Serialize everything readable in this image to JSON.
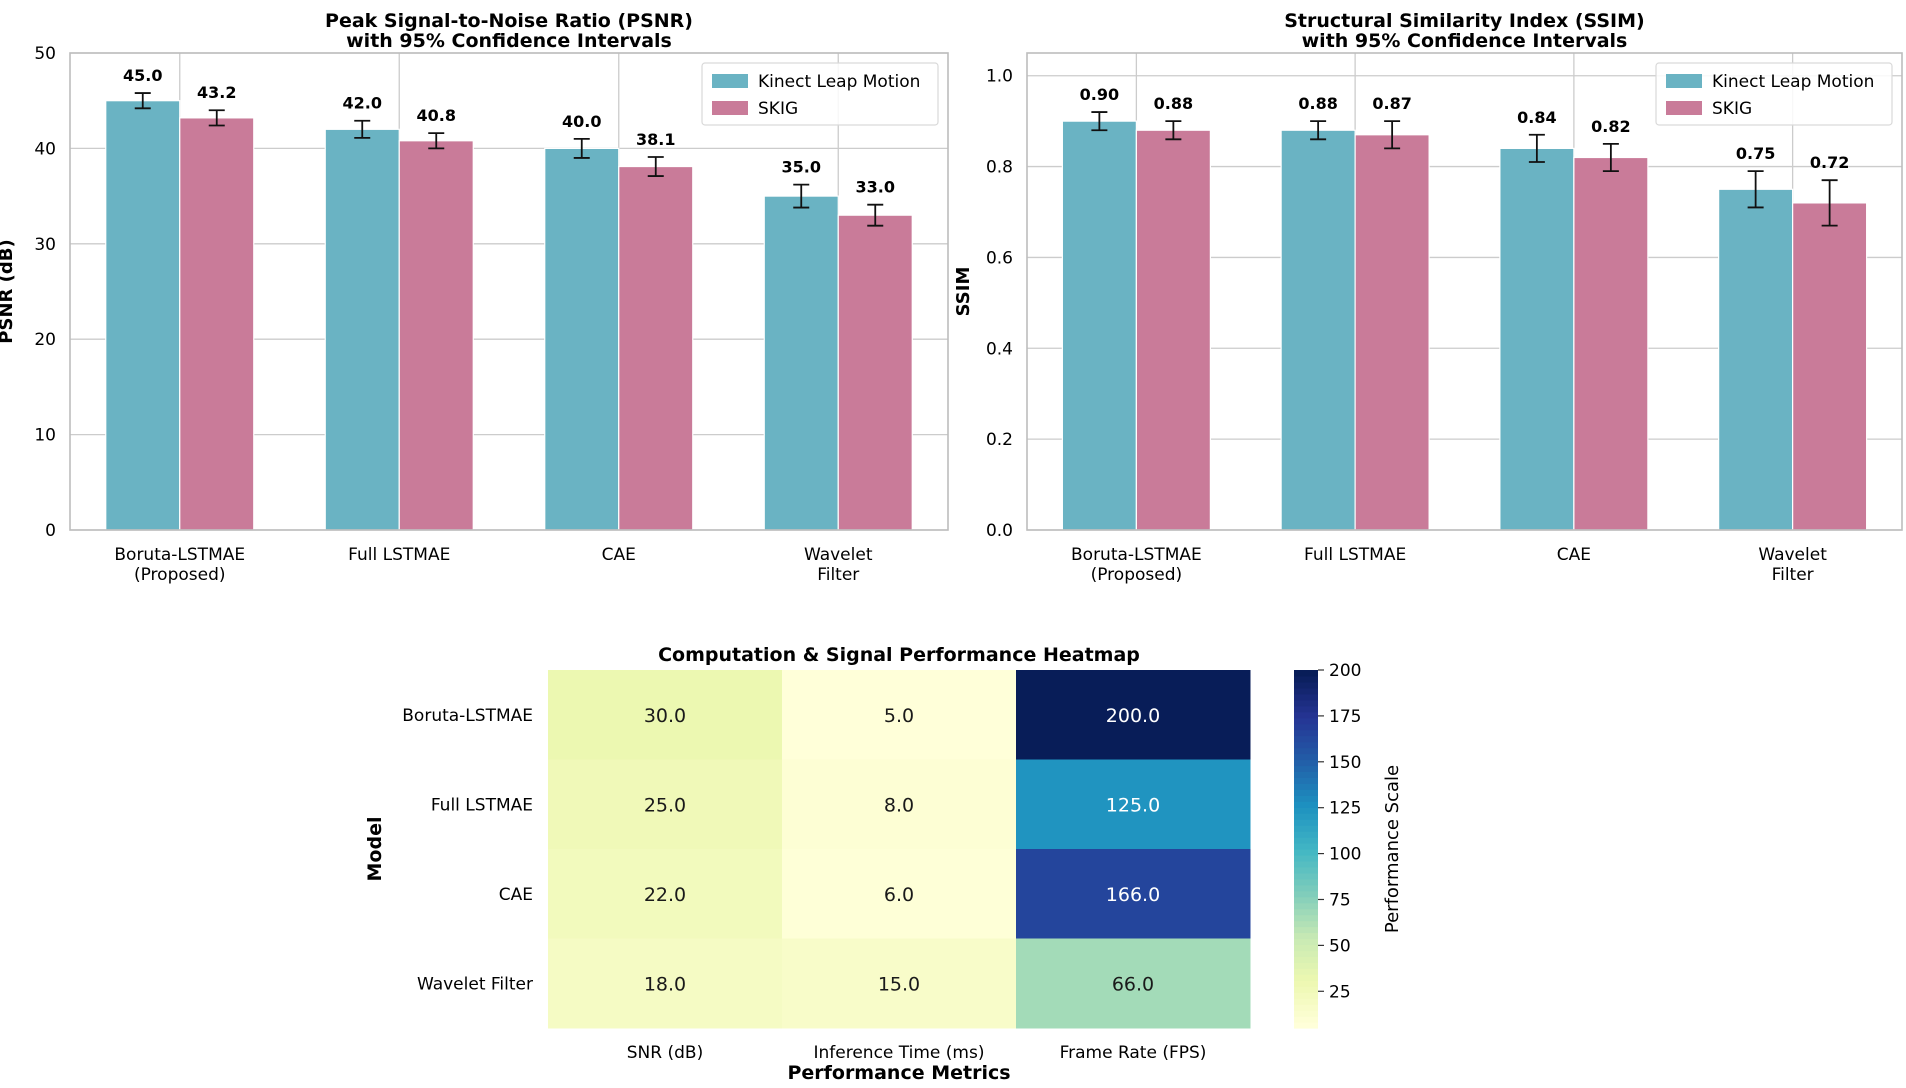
{
  "colors": {
    "kinect": "#6ab3c3",
    "skig": "#c97b99",
    "grid": "#cccccc",
    "axis_frame": "#bdbdbd",
    "heatmap_scale": [
      "#ffffd9",
      "#edf8b1",
      "#c7e9b4",
      "#7fcdbb",
      "#41b6c4",
      "#1d91c0",
      "#225ea8",
      "#253494",
      "#081d58"
    ]
  },
  "chart_data": [
    {
      "type": "bar",
      "title_line1": "Peak Signal-to-Noise Ratio (PSNR)",
      "title_line2": "with 95% Confidence Intervals",
      "xlabel": "",
      "ylabel": "PSNR (dB)",
      "ylim": [
        0,
        50
      ],
      "yticks": [
        "0",
        "10",
        "20",
        "30",
        "40",
        "50"
      ],
      "categories": [
        [
          "Boruta-LSTMAE",
          "(Proposed)"
        ],
        [
          "Full LSTMAE"
        ],
        [
          "CAE"
        ],
        [
          "Wavelet",
          "Filter"
        ]
      ],
      "series": [
        {
          "name": "Kinect Leap Motion",
          "values": [
            45.0,
            42.0,
            40.0,
            35.0
          ],
          "labels": [
            "45.0",
            "42.0",
            "40.0",
            "35.0"
          ],
          "err": [
            0.8,
            0.9,
            1.0,
            1.2
          ]
        },
        {
          "name": "SKIG",
          "values": [
            43.2,
            40.8,
            38.1,
            33.0
          ],
          "labels": [
            "43.2",
            "40.8",
            "38.1",
            "33.0"
          ],
          "err": [
            0.8,
            0.8,
            1.0,
            1.1
          ]
        }
      ],
      "legend": "top-right",
      "grid": true
    },
    {
      "type": "bar",
      "title_line1": "Structural Similarity Index (SSIM)",
      "title_line2": "with 95% Confidence Intervals",
      "xlabel": "",
      "ylabel": "SSIM",
      "ylim": [
        0,
        1.05
      ],
      "yticks": [
        "0.0",
        "0.2",
        "0.4",
        "0.6",
        "0.8",
        "1.0"
      ],
      "categories": [
        [
          "Boruta-LSTMAE",
          "(Proposed)"
        ],
        [
          "Full LSTMAE"
        ],
        [
          "CAE"
        ],
        [
          "Wavelet",
          "Filter"
        ]
      ],
      "series": [
        {
          "name": "Kinect Leap Motion",
          "values": [
            0.9,
            0.88,
            0.84,
            0.75
          ],
          "labels": [
            "0.90",
            "0.88",
            "0.84",
            "0.75"
          ],
          "err": [
            0.02,
            0.02,
            0.03,
            0.04
          ]
        },
        {
          "name": "SKIG",
          "values": [
            0.88,
            0.87,
            0.82,
            0.72
          ],
          "labels": [
            "0.88",
            "0.87",
            "0.82",
            "0.72"
          ],
          "err": [
            0.02,
            0.03,
            0.03,
            0.05
          ]
        }
      ],
      "legend": "top-right",
      "grid": true
    },
    {
      "type": "heatmap",
      "title": "Computation & Signal Performance Heatmap",
      "xlabel": "Performance Metrics",
      "ylabel": "Model",
      "columns": [
        "SNR (dB)",
        "Inference Time (ms)",
        "Frame Rate (FPS)"
      ],
      "rows": [
        "Boruta-LSTMAE",
        "Full LSTMAE",
        "CAE",
        "Wavelet Filter"
      ],
      "values": [
        [
          30.0,
          5.0,
          200.0
        ],
        [
          25.0,
          8.0,
          125.0
        ],
        [
          22.0,
          6.0,
          166.0
        ],
        [
          18.0,
          15.0,
          66.0
        ]
      ],
      "value_labels": [
        [
          "30.0",
          "5.0",
          "200.0"
        ],
        [
          "25.0",
          "8.0",
          "125.0"
        ],
        [
          "22.0",
          "6.0",
          "166.0"
        ],
        [
          "18.0",
          "15.0",
          "66.0"
        ]
      ],
      "colorbar": {
        "label": "Performance Scale",
        "range": [
          5,
          200
        ],
        "ticks": [
          "25",
          "50",
          "75",
          "100",
          "125",
          "150",
          "175",
          "200"
        ]
      }
    }
  ]
}
